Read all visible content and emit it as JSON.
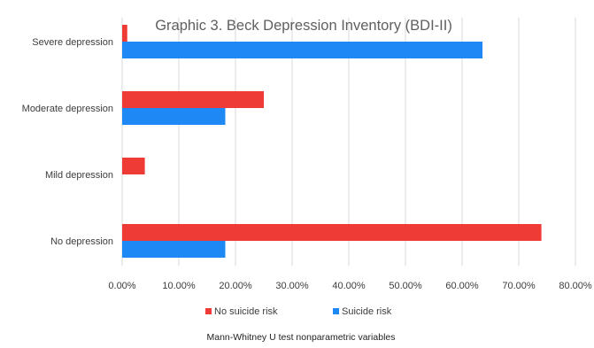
{
  "chart_data": {
    "type": "bar",
    "orientation": "horizontal",
    "title": "Graphic 3. Beck Depression Inventory (BDI-II)",
    "categories": [
      "Severe depression",
      "Moderate depression",
      "Mild depression",
      "No depression"
    ],
    "series": [
      {
        "name": "No suicide risk",
        "color": "#ef3b36",
        "values": [
          0.9,
          25.0,
          4.0,
          74.0
        ]
      },
      {
        "name": "Suicide risk",
        "color": "#1e88f5",
        "values": [
          63.6,
          18.2,
          0.0,
          18.2
        ]
      }
    ],
    "xticks": [
      "0.00%",
      "10.00%",
      "20.00%",
      "30.00%",
      "40.00%",
      "50.00%",
      "60.00%",
      "70.00%",
      "80.00%"
    ],
    "xlim": [
      0,
      80
    ],
    "value_unit": "%",
    "grid": "vertical",
    "legend_position": "bottom",
    "footnote": "Mann-Whitney U test nonparametric variables"
  }
}
